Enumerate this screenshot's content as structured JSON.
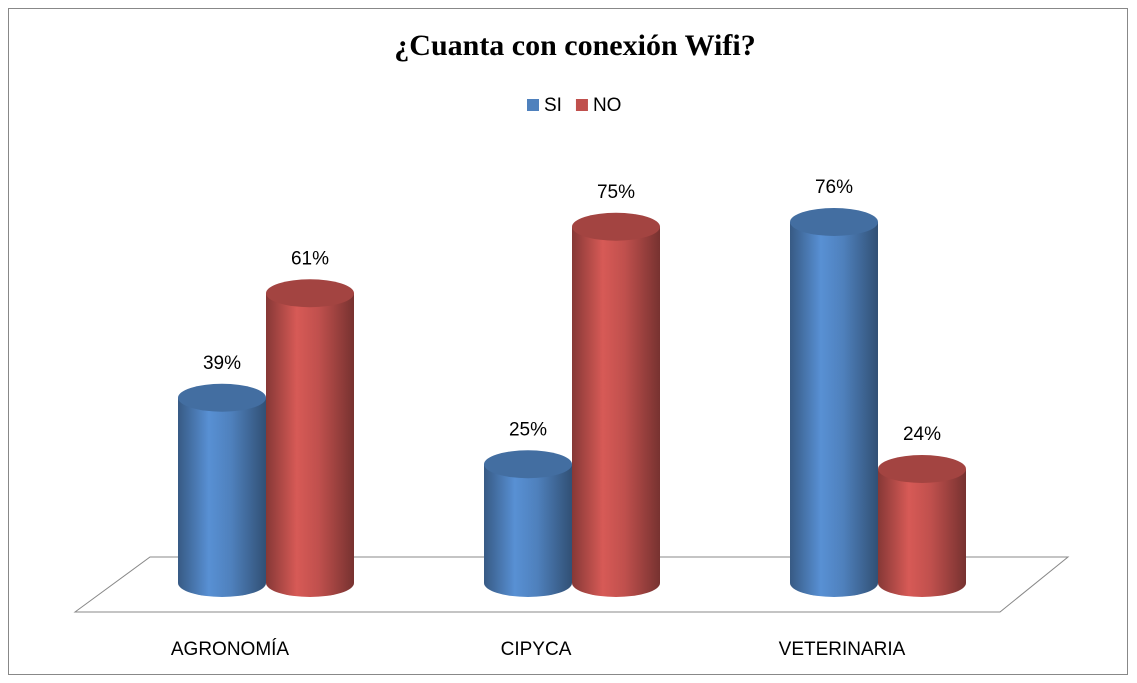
{
  "chart_data": {
    "type": "bar3d",
    "title": "¿Cuanta con conexión Wifi?",
    "categories": [
      "AGRONOMÍA",
      "CIPYCA",
      "VETERINARIA"
    ],
    "series": [
      {
        "name": "SI",
        "color": "#4f81bd",
        "values": [
          39,
          25,
          76
        ],
        "value_labels": [
          "39%",
          "25%",
          "76%"
        ]
      },
      {
        "name": "NO",
        "color": "#c0504d",
        "values": [
          61,
          75,
          24
        ],
        "value_labels": [
          "61%",
          "75%",
          "24%"
        ]
      }
    ],
    "legend": "top"
  }
}
